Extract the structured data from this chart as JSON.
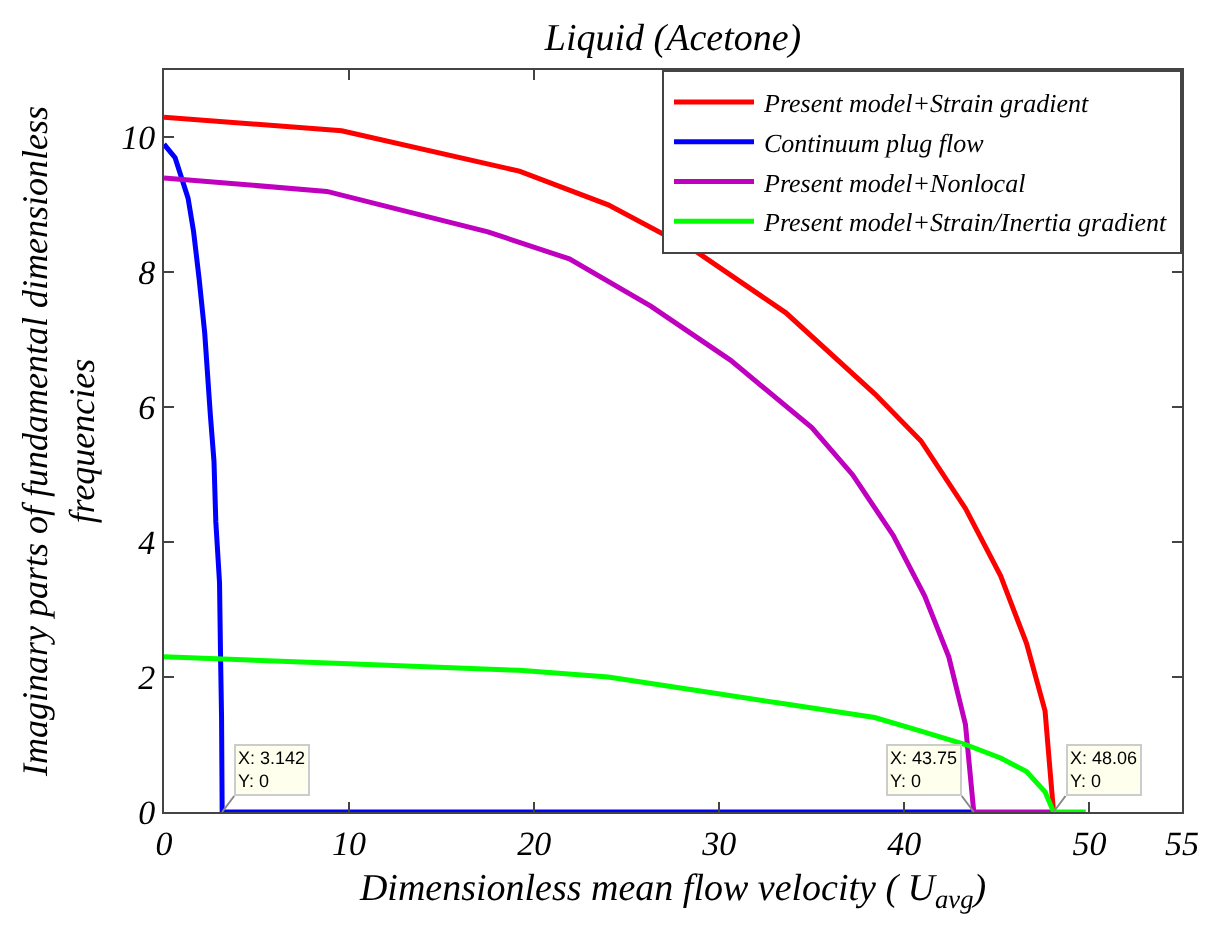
{
  "chart_data": {
    "type": "line",
    "title": "Liquid (Acetone)",
    "xlabel": "Dimensionless mean flow velocity ( U$_{avg}$)",
    "ylabel": "Imaginary parts of fundamental dimensionless\nfrequencies",
    "xlim": [
      0,
      55
    ],
    "xticks": [
      0,
      10,
      20,
      30,
      40,
      50,
      55
    ],
    "ylim": [
      0,
      11
    ],
    "yticks": [
      0,
      2,
      4,
      6,
      8,
      10
    ],
    "legend": "top right",
    "marker": "none",
    "line_style": "solid",
    "series": [
      {
        "name": "Present model+Strain gradient",
        "color": "#ff0000",
        "x": [
          0,
          9.6,
          19.2,
          24,
          28.8,
          33.6,
          38.4,
          40.9,
          43.3,
          45.2,
          46.6,
          47.6,
          48.06
        ],
        "values": [
          10.3,
          10.1,
          9.5,
          9.0,
          8.3,
          7.4,
          6.2,
          5.5,
          4.5,
          3.5,
          2.5,
          1.5,
          0
        ]
      },
      {
        "name": "Continuum plug flow",
        "color": "#0000ff",
        "x": [
          0,
          0.6,
          1.3,
          1.6,
          1.9,
          2.2,
          2.5,
          2.7,
          2.8,
          3.0,
          3.05,
          3.11,
          3.142,
          43.75
        ],
        "values": [
          9.9,
          9.7,
          9.1,
          8.6,
          7.9,
          7.1,
          5.9,
          5.2,
          4.3,
          3.4,
          2.4,
          1.4,
          0,
          0
        ]
      },
      {
        "name": "Present model+Nonlocal",
        "color": "#bf00bf",
        "x": [
          0,
          8.8,
          17.5,
          21.9,
          26.3,
          30.6,
          35,
          37.2,
          39.4,
          41.1,
          42.4,
          43.3,
          43.75,
          48.06
        ],
        "values": [
          9.4,
          9.2,
          8.6,
          8.2,
          7.5,
          6.7,
          5.7,
          5.0,
          4.1,
          3.2,
          2.3,
          1.3,
          0,
          0
        ]
      },
      {
        "name": "Present model+Strain/Inertia gradient",
        "color": "#00ff00",
        "x": [
          0,
          9.6,
          19.2,
          24,
          28.8,
          33.6,
          38.4,
          40.9,
          43.3,
          45.2,
          46.6,
          47.6,
          48.06,
          49.8
        ],
        "values": [
          2.3,
          2.2,
          2.1,
          2.0,
          1.8,
          1.6,
          1.4,
          1.2,
          1.0,
          0.8,
          0.6,
          0.3,
          0,
          0
        ]
      }
    ],
    "annotations": [
      {
        "text": "X: 3.142\nY: 0",
        "x": 3.142,
        "y": 0
      },
      {
        "text": "X: 43.75\nY: 0",
        "x": 43.75,
        "y": 0
      },
      {
        "text": "X: 48.06\nY: 0",
        "x": 48.06,
        "y": 0
      }
    ]
  }
}
